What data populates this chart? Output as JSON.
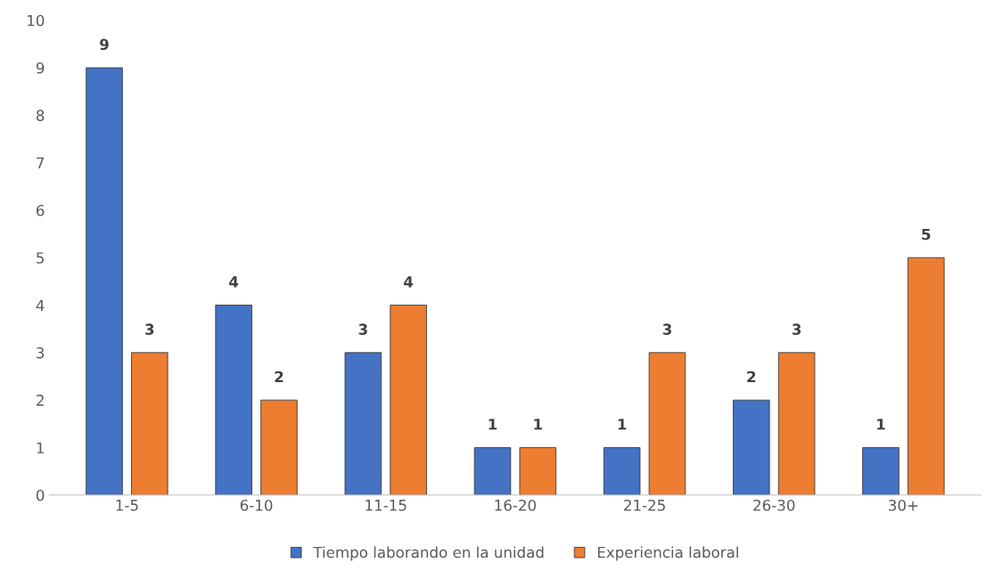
{
  "chart_data": {
    "type": "bar",
    "categories": [
      "1-5",
      "6-10",
      "11-15",
      "16-20",
      "21-25",
      "26-30",
      "30+"
    ],
    "series": [
      {
        "name": "Tiempo laborando en la unidad",
        "color": "#4472c4",
        "values": [
          9,
          4,
          3,
          1,
          1,
          2,
          1
        ]
      },
      {
        "name": "Experiencia laboral",
        "color": "#ed7d31",
        "values": [
          3,
          2,
          4,
          1,
          3,
          3,
          5
        ]
      }
    ],
    "ylim": [
      0,
      10
    ],
    "yticks": [
      0,
      1,
      2,
      3,
      4,
      5,
      6,
      7,
      8,
      9,
      10
    ],
    "grid": false,
    "legend": "bottom",
    "data_labels": true
  }
}
